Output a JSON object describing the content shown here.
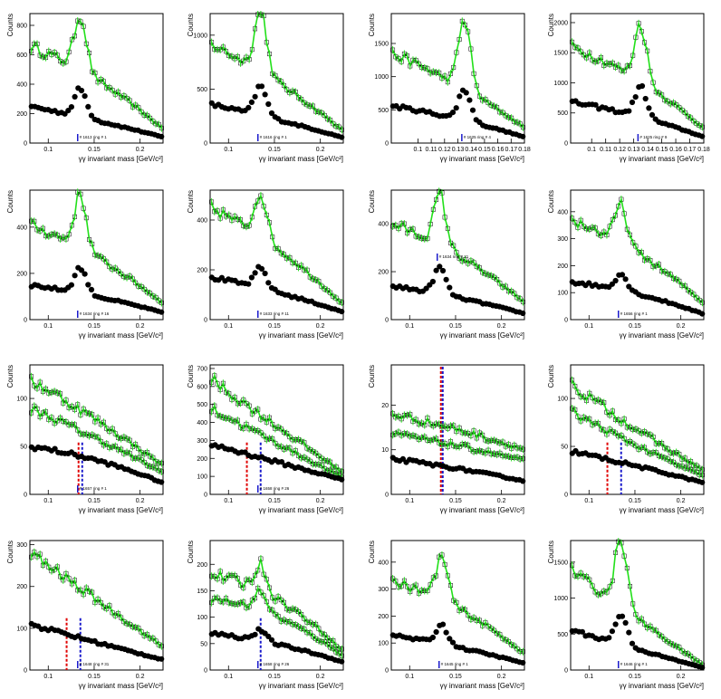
{
  "style": {
    "green": "#22e01a",
    "black": "#000000",
    "red": "#e00000",
    "blue": "#1a1acc"
  },
  "chart_data": [
    {
      "type": "scatter",
      "xlabel": "γγ invariant mass [GeV/c²]",
      "ylabel": "Counts",
      "xlim": [
        0.08,
        0.225
      ],
      "ylim": [
        0,
        880
      ],
      "xticks": [
        0.1,
        0.15,
        0.2
      ],
      "yticks": [
        0,
        200,
        400,
        600,
        800
      ],
      "annotation": "# 1613 ring # 1",
      "peak": 0.135,
      "green_base": [
        660,
        480,
        95
      ],
      "green_peak": 380,
      "black_base": [
        250,
        160,
        40
      ],
      "black_peak": 190,
      "double": false,
      "lines": []
    },
    {
      "type": "scatter",
      "xlabel": "γγ invariant mass [GeV/c²]",
      "ylabel": "Counts",
      "xlim": [
        0.08,
        0.225
      ],
      "ylim": [
        0,
        1200
      ],
      "xticks": [
        0.1,
        0.15,
        0.2
      ],
      "yticks": [
        0,
        500,
        1000
      ],
      "annotation": "# 1616 ring # 1",
      "peak": 0.135,
      "green_base": [
        920,
        620,
        110
      ],
      "green_peak": 580,
      "black_base": [
        360,
        230,
        50
      ],
      "black_peak": 270,
      "double": false,
      "lines": []
    },
    {
      "type": "scatter",
      "xlabel": "γγ invariant mass [GeV/c²]",
      "ylabel": "Counts",
      "xlim": [
        0.08,
        0.18
      ],
      "ylim": [
        0,
        1950
      ],
      "xticks": [
        0.1,
        0.11,
        0.12,
        0.13,
        0.14,
        0.15,
        0.16,
        0.17,
        0.18
      ],
      "yticks": [
        0,
        500,
        1000,
        1500
      ],
      "annotation": "# 1625 ring # 4",
      "peak": 0.135,
      "green_base": [
        1350,
        950,
        230
      ],
      "green_peak": 1050,
      "black_base": [
        560,
        400,
        90
      ],
      "black_peak": 470,
      "double": false,
      "lines": []
    },
    {
      "type": "scatter",
      "xlabel": "γγ invariant mass [GeV/c²]",
      "ylabel": "Counts",
      "xlim": [
        0.085,
        0.18
      ],
      "ylim": [
        0,
        2150
      ],
      "xticks": [
        0.1,
        0.11,
        0.12,
        0.13,
        0.14,
        0.15,
        0.16,
        0.17,
        0.18
      ],
      "yticks": [
        0,
        500,
        1000,
        1500,
        2000
      ],
      "annotation": "# 1625 ring # 9",
      "peak": 0.135,
      "green_base": [
        1600,
        1200,
        240
      ],
      "green_peak": 950,
      "black_base": [
        680,
        500,
        100
      ],
      "black_peak": 500,
      "double": false,
      "lines": []
    },
    {
      "type": "scatter",
      "xlabel": "γγ invariant mass [GeV/c²]",
      "ylabel": "Counts",
      "xlim": [
        0.08,
        0.225
      ],
      "ylim": [
        0,
        560
      ],
      "xticks": [
        0.1,
        0.15,
        0.2
      ],
      "yticks": [
        0,
        200,
        400
      ],
      "annotation": "# 1634 ring # 16",
      "peak": 0.135,
      "green_base": [
        410,
        300,
        70
      ],
      "green_peak": 230,
      "black_base": [
        150,
        110,
        30
      ],
      "black_peak": 110,
      "double": false,
      "lines": []
    },
    {
      "type": "scatter",
      "xlabel": "γγ invariant mass [GeV/c²]",
      "ylabel": "Counts",
      "xlim": [
        0.08,
        0.225
      ],
      "ylim": [
        0,
        520
      ],
      "xticks": [
        0.1,
        0.15,
        0.2
      ],
      "yticks": [
        0,
        200,
        400
      ],
      "annotation": "# 1633 ring # 11",
      "peak": 0.135,
      "green_base": [
        450,
        320,
        60
      ],
      "green_peak": 180,
      "black_base": [
        170,
        120,
        30
      ],
      "black_peak": 80,
      "double": false,
      "lines": []
    },
    {
      "type": "scatter",
      "xlabel": "γγ invariant mass [GeV/c²]",
      "ylabel": "Counts",
      "xlim": [
        0.08,
        0.225
      ],
      "ylim": [
        0,
        540
      ],
      "xticks": [
        0.1,
        0.15,
        0.2
      ],
      "yticks": [
        0,
        200,
        400
      ],
      "annotation": "# 1634 ring # 21",
      "peak": 0.133,
      "green_base": [
        400,
        300,
        70
      ],
      "green_peak": 210,
      "black_base": [
        140,
        100,
        25
      ],
      "black_peak": 110,
      "double": false,
      "lines": []
    },
    {
      "type": "scatter",
      "xlabel": "γγ invariant mass [GeV/c²]",
      "ylabel": "Counts",
      "xlim": [
        0.08,
        0.225
      ],
      "ylim": [
        0,
        480
      ],
      "xticks": [
        0.1,
        0.15,
        0.2
      ],
      "yticks": [
        0,
        100,
        200,
        300,
        400
      ],
      "annotation": "# 1656 ring # 1",
      "peak": 0.135,
      "green_base": [
        370,
        280,
        60
      ],
      "green_peak": 140,
      "black_base": [
        140,
        110,
        20
      ],
      "black_peak": 60,
      "double": false,
      "lines": []
    },
    {
      "type": "scatter",
      "xlabel": "γγ invariant mass [GeV/c²]",
      "ylabel": "Counts",
      "xlim": [
        0.08,
        0.225
      ],
      "ylim": [
        0,
        135
      ],
      "xticks": [
        0.1,
        0.15,
        0.2
      ],
      "yticks": [
        0,
        50,
        100
      ],
      "annotation": "# 1657 ring # 1",
      "peak": 0.135,
      "green_base": [
        120,
        80,
        30
      ],
      "green_peak": 0,
      "black_base": [
        50,
        40,
        12
      ],
      "black_peak": 0,
      "double": true,
      "lines": [
        0.133,
        0.137
      ]
    },
    {
      "type": "scatter",
      "xlabel": "γγ invariant mass [GeV/c²]",
      "ylabel": "Counts",
      "xlim": [
        0.08,
        0.225
      ],
      "ylim": [
        0,
        720
      ],
      "xticks": [
        0.1,
        0.15,
        0.2
      ],
      "yticks": [
        0,
        100,
        200,
        300,
        400,
        500,
        600,
        700
      ],
      "annotation": "# 1658 ring # 26",
      "peak": 0.135,
      "green_base": [
        640,
        380,
        120
      ],
      "green_peak": 0,
      "black_base": [
        280,
        180,
        80
      ],
      "black_peak": 0,
      "double": true,
      "lines": [
        0.12,
        0.135
      ]
    },
    {
      "type": "scatter",
      "xlabel": "γγ invariant mass [GeV/c²]",
      "ylabel": "Counts",
      "xlim": [
        0.08,
        0.225
      ],
      "ylim": [
        0,
        29
      ],
      "xticks": [
        0.1,
        0.15,
        0.2
      ],
      "yticks": [
        0,
        10,
        20
      ],
      "annotation": "",
      "peak": 0.135,
      "green_base": [
        18,
        15,
        10
      ],
      "green_peak": 0,
      "black_base": [
        8,
        6,
        3
      ],
      "black_peak": 0,
      "double": true,
      "lines": [
        0.134,
        0.136
      ]
    },
    {
      "type": "scatter",
      "xlabel": "γγ invariant mass [GeV/c²]",
      "ylabel": "Counts",
      "xlim": [
        0.08,
        0.225
      ],
      "ylim": [
        0,
        135
      ],
      "xticks": [
        0.1,
        0.15,
        0.2
      ],
      "yticks": [
        0,
        50,
        100
      ],
      "annotation": "",
      "peak": 0.135,
      "green_base": [
        115,
        65,
        25
      ],
      "green_peak": 0,
      "black_base": [
        45,
        30,
        12
      ],
      "black_peak": 0,
      "double": true,
      "lines": [
        0.12,
        0.135
      ]
    },
    {
      "type": "scatter",
      "xlabel": "γγ invariant mass [GeV/c²]",
      "ylabel": "Counts",
      "xlim": [
        0.08,
        0.225
      ],
      "ylim": [
        0,
        310
      ],
      "xticks": [
        0.1,
        0.15,
        0.2
      ],
      "yticks": [
        0,
        100,
        200,
        300
      ],
      "annotation": "# 1648 ring # 31",
      "peak": 0.135,
      "green_base": [
        280,
        170,
        55
      ],
      "green_peak": 0,
      "black_base": [
        110,
        65,
        25
      ],
      "black_peak": 0,
      "double": false,
      "lines": [
        0.12,
        0.135
      ]
    },
    {
      "type": "scatter",
      "xlabel": "γγ invariant mass [GeV/c²]",
      "ylabel": "Counts",
      "xlim": [
        0.08,
        0.225
      ],
      "ylim": [
        0,
        245
      ],
      "xticks": [
        0.1,
        0.15,
        0.2
      ],
      "yticks": [
        0,
        50,
        100,
        150,
        200
      ],
      "annotation": "# 1658 ring # 26",
      "peak": 0.135,
      "green_base": [
        180,
        160,
        35
      ],
      "green_peak": 50,
      "black_base": [
        70,
        55,
        15
      ],
      "black_peak": 20,
      "double": true,
      "lines": [
        0.135
      ]
    },
    {
      "type": "scatter",
      "xlabel": "γγ invariant mass [GeV/c²]",
      "ylabel": "Counts",
      "xlim": [
        0.08,
        0.225
      ],
      "ylim": [
        0,
        480
      ],
      "xticks": [
        0.1,
        0.15,
        0.2
      ],
      "yticks": [
        0,
        100,
        200,
        300,
        400
      ],
      "annotation": "# 1645 ring # 1",
      "peak": 0.135,
      "green_base": [
        330,
        260,
        60
      ],
      "green_peak": 160,
      "black_base": [
        130,
        90,
        25
      ],
      "black_peak": 70,
      "double": false,
      "lines": []
    },
    {
      "type": "scatter",
      "xlabel": "γγ invariant mass [GeV/c²]",
      "ylabel": "Counts",
      "xlim": [
        0.08,
        0.225
      ],
      "ylim": [
        0,
        1800
      ],
      "xticks": [
        0.1,
        0.15,
        0.2
      ],
      "yticks": [
        0,
        500,
        1000,
        1500
      ],
      "annotation": "# 1646 ring # 1",
      "peak": 0.135,
      "green_base": [
        1400,
        700,
        60
      ],
      "green_peak": 950,
      "black_base": [
        560,
        280,
        30
      ],
      "black_peak": 420,
      "double": false,
      "lines": []
    }
  ]
}
